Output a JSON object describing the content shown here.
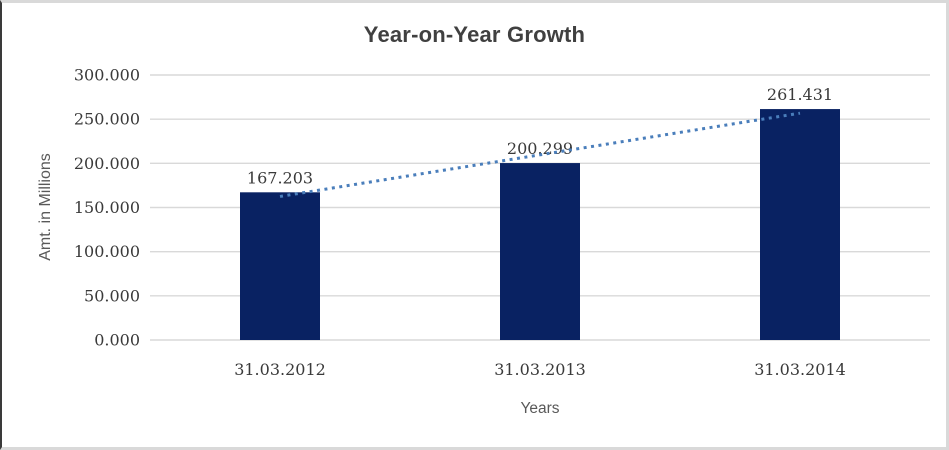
{
  "chart_data": {
    "type": "bar",
    "title": "Year-on-Year Growth",
    "xlabel": "Years",
    "ylabel": "Amt. in Millions",
    "categories": [
      "31.03.2012",
      "31.03.2013",
      "31.03.2014"
    ],
    "values": [
      167.203,
      200.299,
      261.431
    ],
    "data_labels": [
      "167.203",
      "200.299",
      "261.431"
    ],
    "ylim": [
      0,
      300
    ],
    "ytick_step": 50,
    "ytick_labels": [
      "0.000",
      "50.000",
      "100.000",
      "150.000",
      "200.000",
      "250.000",
      "300.000"
    ],
    "grid": true,
    "legend_position": "none",
    "bar_color": "#092262",
    "trendline": {
      "type": "linear",
      "style": "dotted",
      "color": "#4a7ebb"
    },
    "colors": {
      "gridline": "#d9d9d9",
      "tick_label": "#3a3a3a",
      "axis_title": "#595959",
      "title": "#404040",
      "frame_light": "#d9d9d9",
      "frame_dark": "#3a3a3a"
    }
  }
}
